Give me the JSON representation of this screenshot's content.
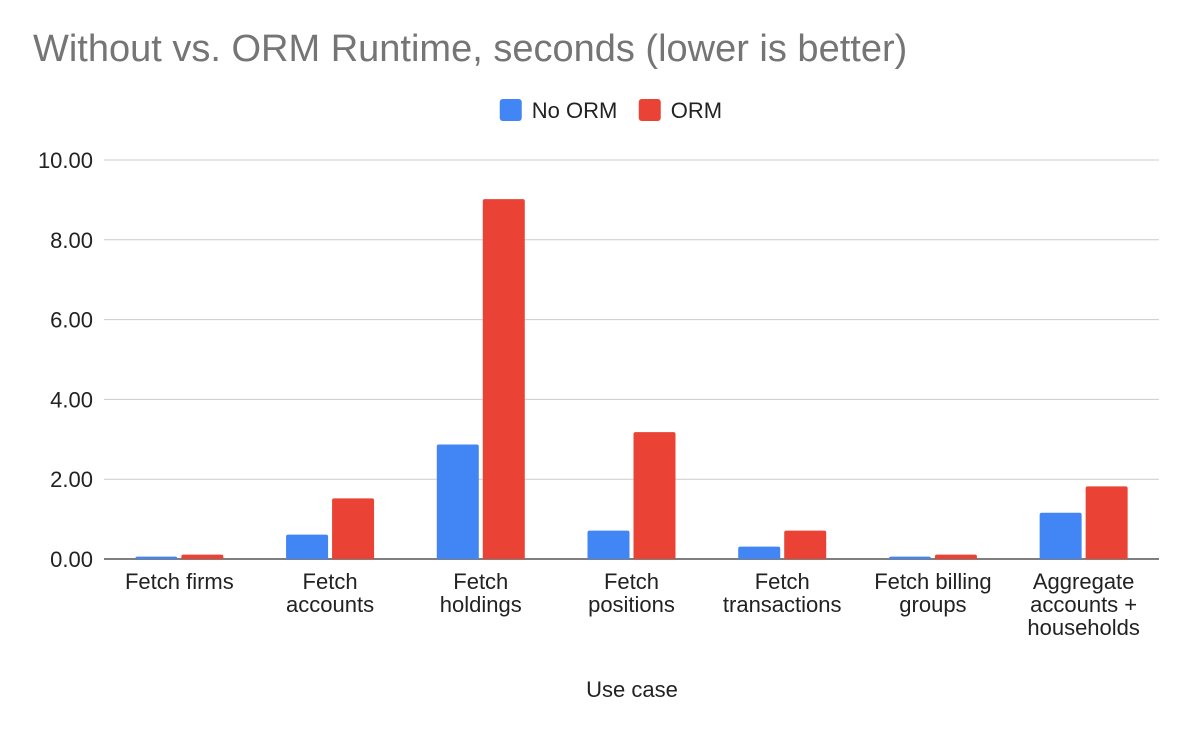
{
  "chart_data": {
    "type": "bar",
    "title": "Without vs. ORM Runtime, seconds (lower is better)",
    "xlabel": "Use case",
    "ylabel": "",
    "ylim": [
      0,
      10
    ],
    "yticks": [
      "0.00",
      "2.00",
      "4.00",
      "6.00",
      "8.00",
      "10.00"
    ],
    "grid": true,
    "legend_position": "top-center",
    "categories": [
      [
        "Fetch firms"
      ],
      [
        "Fetch",
        "accounts"
      ],
      [
        "Fetch",
        "holdings"
      ],
      [
        "Fetch",
        "positions"
      ],
      [
        "Fetch",
        "transactions"
      ],
      [
        "Fetch billing",
        "groups"
      ],
      [
        "Aggregate",
        "accounts +",
        "households"
      ]
    ],
    "series": [
      {
        "name": "No ORM",
        "color": "#4285f4",
        "values": [
          0.06,
          0.61,
          2.87,
          0.71,
          0.31,
          0.06,
          1.16
        ]
      },
      {
        "name": "ORM",
        "color": "#ea4335",
        "values": [
          0.11,
          1.52,
          9.02,
          3.18,
          0.71,
          0.11,
          1.82
        ]
      }
    ]
  }
}
